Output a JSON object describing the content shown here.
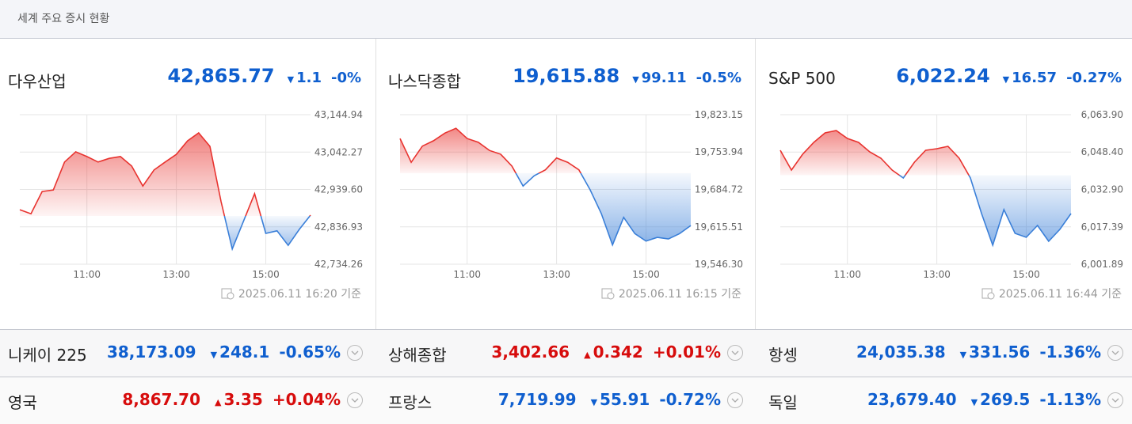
{
  "header": {
    "title": "세계 주요 증시 현황"
  },
  "colors": {
    "up": "#d70c0c",
    "down": "#0f5fcf"
  },
  "panels": [
    {
      "name": "다우산업",
      "price": 42865.77,
      "price_label": "42,865.77",
      "direction": "down",
      "change": -1.1,
      "change_label": "1.1",
      "change_pct_label": "-0%",
      "timestamp": "2025.06.11 16:20 기준"
    },
    {
      "name": "나스닥종합",
      "price": 19615.88,
      "price_label": "19,615.88",
      "direction": "down",
      "change": -99.11,
      "change_label": "99.11",
      "change_pct_label": "-0.5%",
      "timestamp": "2025.06.11 16:15 기준"
    },
    {
      "name": "S&P 500",
      "price": 6022.24,
      "price_label": "6,022.24",
      "direction": "down",
      "change": -16.57,
      "change_label": "16.57",
      "change_pct_label": "-0.27%",
      "timestamp": "2025.06.11 16:44 기준"
    }
  ],
  "chart_data": [
    {
      "type": "line",
      "above_color": "#e8332f",
      "below_color": "#3a7fd8",
      "grid": true,
      "x": [
        9.5,
        9.75,
        10,
        10.25,
        10.5,
        10.75,
        11,
        11.25,
        11.5,
        11.75,
        12,
        12.25,
        12.5,
        12.75,
        13,
        13.25,
        13.5,
        13.75,
        14,
        14.25,
        14.5,
        14.75,
        15,
        15.25,
        15.5,
        15.75,
        16
      ],
      "values": [
        42884,
        42873,
        42934,
        42938,
        43015,
        43043,
        43030,
        43015,
        43025,
        43030,
        43004,
        42949,
        42993,
        43015,
        43036,
        43073,
        43095,
        43058,
        42906,
        42776,
        42852,
        42928,
        42819,
        42826,
        42786,
        42830,
        42869
      ],
      "xlim": [
        9.5,
        16
      ],
      "xticks": [
        {
          "value": 11,
          "label": "11:00"
        },
        {
          "value": 13,
          "label": "13:00"
        },
        {
          "value": 15,
          "label": "15:00"
        }
      ],
      "ylim": [
        42734.26,
        43144.94
      ],
      "yticks": [
        {
          "value": 42734.26,
          "label": "42,734.26"
        },
        {
          "value": 42836.93,
          "label": "42,836.93"
        },
        {
          "value": 42939.6,
          "label": "42,939.60"
        },
        {
          "value": 43042.27,
          "label": "43,042.27"
        },
        {
          "value": 43144.94,
          "label": "43,144.94"
        }
      ]
    },
    {
      "type": "line",
      "above_color": "#e8332f",
      "below_color": "#3a7fd8",
      "grid": true,
      "x": [
        9.5,
        9.75,
        10,
        10.25,
        10.5,
        10.75,
        11,
        11.25,
        11.5,
        11.75,
        12,
        12.25,
        12.5,
        12.75,
        13,
        13.25,
        13.5,
        13.75,
        14,
        14.25,
        14.5,
        14.75,
        15,
        15.25,
        15.5,
        15.75,
        16
      ],
      "values": [
        19779,
        19735,
        19765,
        19775,
        19789,
        19798,
        19779,
        19772,
        19757,
        19750,
        19728,
        19691,
        19710,
        19721,
        19743,
        19735,
        19721,
        19684,
        19640,
        19582,
        19633,
        19603,
        19589,
        19596,
        19593,
        19603,
        19618
      ],
      "xlim": [
        9.5,
        16
      ],
      "xticks": [
        {
          "value": 11,
          "label": "11:00"
        },
        {
          "value": 13,
          "label": "13:00"
        },
        {
          "value": 15,
          "label": "15:00"
        }
      ],
      "ylim": [
        19546.3,
        19823.15
      ],
      "yticks": [
        {
          "value": 19546.3,
          "label": "19,546.30"
        },
        {
          "value": 19615.51,
          "label": "19,615.51"
        },
        {
          "value": 19684.72,
          "label": "19,684.72"
        },
        {
          "value": 19753.94,
          "label": "19,753.94"
        },
        {
          "value": 19823.15,
          "label": "19,823.15"
        }
      ]
    },
    {
      "type": "line",
      "above_color": "#e8332f",
      "below_color": "#3a7fd8",
      "grid": true,
      "x": [
        9.5,
        9.75,
        10,
        10.25,
        10.5,
        10.75,
        11,
        11.25,
        11.5,
        11.75,
        12,
        12.25,
        12.5,
        12.75,
        13,
        13.25,
        13.5,
        13.75,
        14,
        14.25,
        14.5,
        14.75,
        15,
        15.25,
        15.5,
        15.75,
        16
      ],
      "values": [
        6049.13,
        6040.93,
        6047.49,
        6052.42,
        6056.35,
        6057.34,
        6054.06,
        6052.42,
        6048.48,
        6045.86,
        6040.93,
        6037.65,
        6044.21,
        6049.13,
        6049.79,
        6050.77,
        6045.86,
        6037.65,
        6022.89,
        6009.76,
        6024.53,
        6014.69,
        6013.05,
        6017.97,
        6011.41,
        6016.33,
        6022.89
      ],
      "xlim": [
        9.5,
        16
      ],
      "xticks": [
        {
          "value": 11,
          "label": "11:00"
        },
        {
          "value": 13,
          "label": "13:00"
        },
        {
          "value": 15,
          "label": "15:00"
        }
      ],
      "ylim": [
        6001.89,
        6063.9
      ],
      "yticks": [
        {
          "value": 6001.89,
          "label": "6,001.89"
        },
        {
          "value": 6017.39,
          "label": "6,017.39"
        },
        {
          "value": 6032.9,
          "label": "6,032.90"
        },
        {
          "value": 6048.4,
          "label": "6,048.40"
        },
        {
          "value": 6063.9,
          "label": "6,063.90"
        }
      ]
    }
  ],
  "rows": [
    [
      {
        "name": "니케이 225",
        "price_label": "38,173.09",
        "direction": "down",
        "change_label": "248.1",
        "change_pct_label": "-0.65%"
      },
      {
        "name": "상해종합",
        "price_label": "3,402.66",
        "direction": "up",
        "change_label": "0.342",
        "change_pct_label": "+0.01%"
      },
      {
        "name": "항셍",
        "price_label": "24,035.38",
        "direction": "down",
        "change_label": "331.56",
        "change_pct_label": "-1.36%"
      }
    ],
    [
      {
        "name": "영국",
        "price_label": "8,867.70",
        "direction": "up",
        "change_label": "3.35",
        "change_pct_label": "+0.04%"
      },
      {
        "name": "프랑스",
        "price_label": "7,719.99",
        "direction": "down",
        "change_label": "55.91",
        "change_pct_label": "-0.72%"
      },
      {
        "name": "독일",
        "price_label": "23,679.40",
        "direction": "down",
        "change_label": "269.5",
        "change_pct_label": "-1.13%"
      }
    ]
  ]
}
